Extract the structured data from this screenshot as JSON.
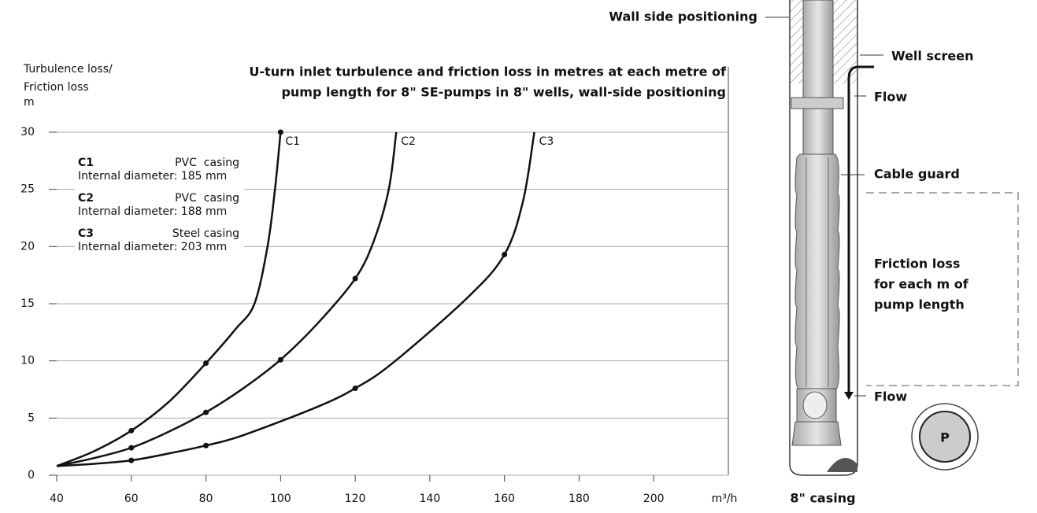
{
  "chart_data": {
    "type": "line",
    "title": [
      "U-turn inlet turbulence and friction loss in metres at each metre of",
      "pump length for 8\" SE-pumps in 8\" wells, wall-side positioning"
    ],
    "y_label": [
      "Turbulence loss/",
      "Friction loss",
      "m"
    ],
    "x_label": "m³/h",
    "xlim": [
      40,
      220
    ],
    "xticks": [
      40,
      60,
      80,
      100,
      120,
      140,
      160,
      180,
      200
    ],
    "ylim": [
      0,
      30
    ],
    "yticks": [
      0,
      5,
      10,
      15,
      20,
      25,
      30
    ],
    "grid": true,
    "color": "#111",
    "series": [
      {
        "name": "C1",
        "casing": "PVC  casing",
        "diameter": "Internal diameter: 185 mm",
        "x": [
          40,
          50,
          60,
          70,
          80,
          88,
          93,
          96.5,
          98.5,
          100
        ],
        "values": [
          0.8,
          2.1,
          3.9,
          6.4,
          9.8,
          12.8,
          15,
          20,
          25,
          30
        ]
      },
      {
        "name": "C2",
        "casing": "PVC  casing",
        "diameter": "Internal diameter: 188 mm",
        "x": [
          40,
          50,
          60,
          70,
          80,
          90,
          100,
          110,
          120,
          125,
          129,
          131
        ],
        "values": [
          0.8,
          1.5,
          2.4,
          3.8,
          5.5,
          7.6,
          10.1,
          13.3,
          17.2,
          20.5,
          25,
          30
        ]
      },
      {
        "name": "C3",
        "casing": "Steel casing",
        "diameter": "Internal diameter: 203 mm",
        "x": [
          40,
          50,
          60,
          70,
          80,
          90,
          110,
          120,
          130,
          150,
          160,
          165,
          168
        ],
        "values": [
          0.8,
          1.0,
          1.3,
          1.9,
          2.6,
          3.5,
          6.0,
          7.6,
          9.8,
          15.5,
          19.3,
          24,
          30
        ]
      }
    ]
  },
  "diagram": {
    "wall": "Wall side positioning",
    "screen": "Well screen",
    "flow_top": "Flow",
    "guard": "Cable guard",
    "friction": [
      "Friction loss",
      "for each m of",
      "pump length"
    ],
    "flow_bottom": "Flow",
    "pump": "P",
    "casing": "8\" casing"
  }
}
